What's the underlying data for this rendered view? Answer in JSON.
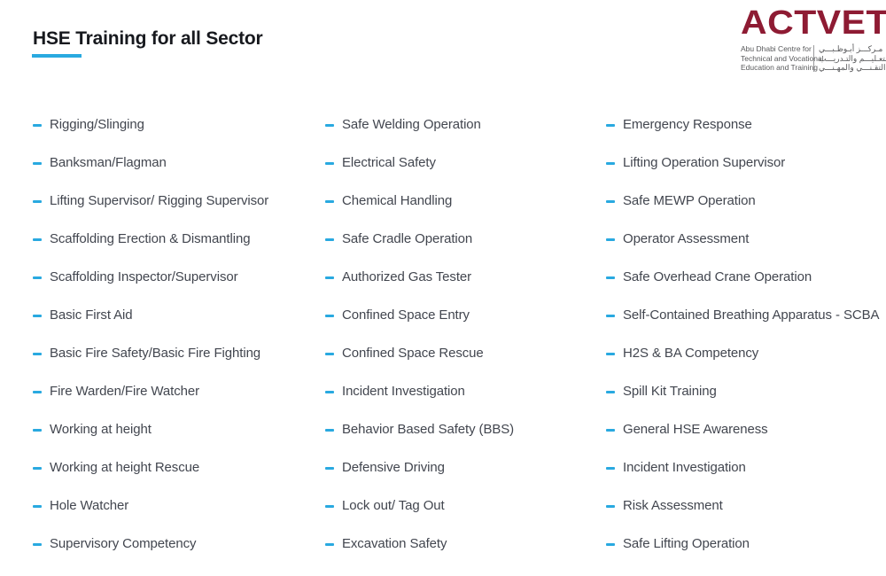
{
  "header": {
    "title": "HSE Training for all Sector"
  },
  "logo": {
    "wordmark": "ACTVET",
    "tagline_lines": [
      "Abu Dhabi Centre for",
      "Technical and Vocational",
      "Education and Training"
    ],
    "arabic_lines": [
      "مـركـــز أبـوظـبـــي",
      "للتعـليـــم والتـدريـــب",
      "التقـنـــي والمهـنـــي"
    ],
    "wordmark_color": "#8E1B33",
    "tagline_color": "#58595B"
  },
  "colors": {
    "background": "#FFFFFF",
    "title_text": "#17191E",
    "title_underline": "#29A9E0",
    "bullet": "#29A9E0",
    "item_text": "#42464F"
  },
  "lists": {
    "columns": [
      {
        "items": [
          "Rigging/Slinging",
          "Banksman/Flagman",
          "Lifting Supervisor/ Rigging Supervisor",
          "Scaffolding Erection & Dismantling",
          "Scaffolding Inspector/Supervisor",
          "Basic First Aid",
          "Basic Fire Safety/Basic Fire Fighting",
          "Fire Warden/Fire Watcher",
          "Working at height",
          "Working at height Rescue",
          "Hole Watcher",
          "Supervisory Competency"
        ]
      },
      {
        "items": [
          "Safe Welding Operation",
          "Electrical Safety",
          "Chemical Handling",
          "Safe Cradle Operation",
          "Authorized Gas Tester",
          "Confined Space Entry",
          "Confined Space Rescue",
          "Incident Investigation",
          "Behavior Based Safety (BBS)",
          "Defensive Driving",
          "Lock out/ Tag Out",
          "Excavation Safety"
        ]
      },
      {
        "items": [
          "Emergency Response",
          "Lifting Operation Supervisor",
          "Safe MEWP Operation",
          "Operator Assessment",
          "Safe Overhead Crane Operation",
          "Self-Contained Breathing Apparatus - SCBA",
          "H2S & BA Competency",
          "Spill Kit Training",
          "General HSE Awareness",
          "Incident Investigation",
          "Risk Assessment",
          "Safe Lifting Operation"
        ]
      }
    ]
  }
}
